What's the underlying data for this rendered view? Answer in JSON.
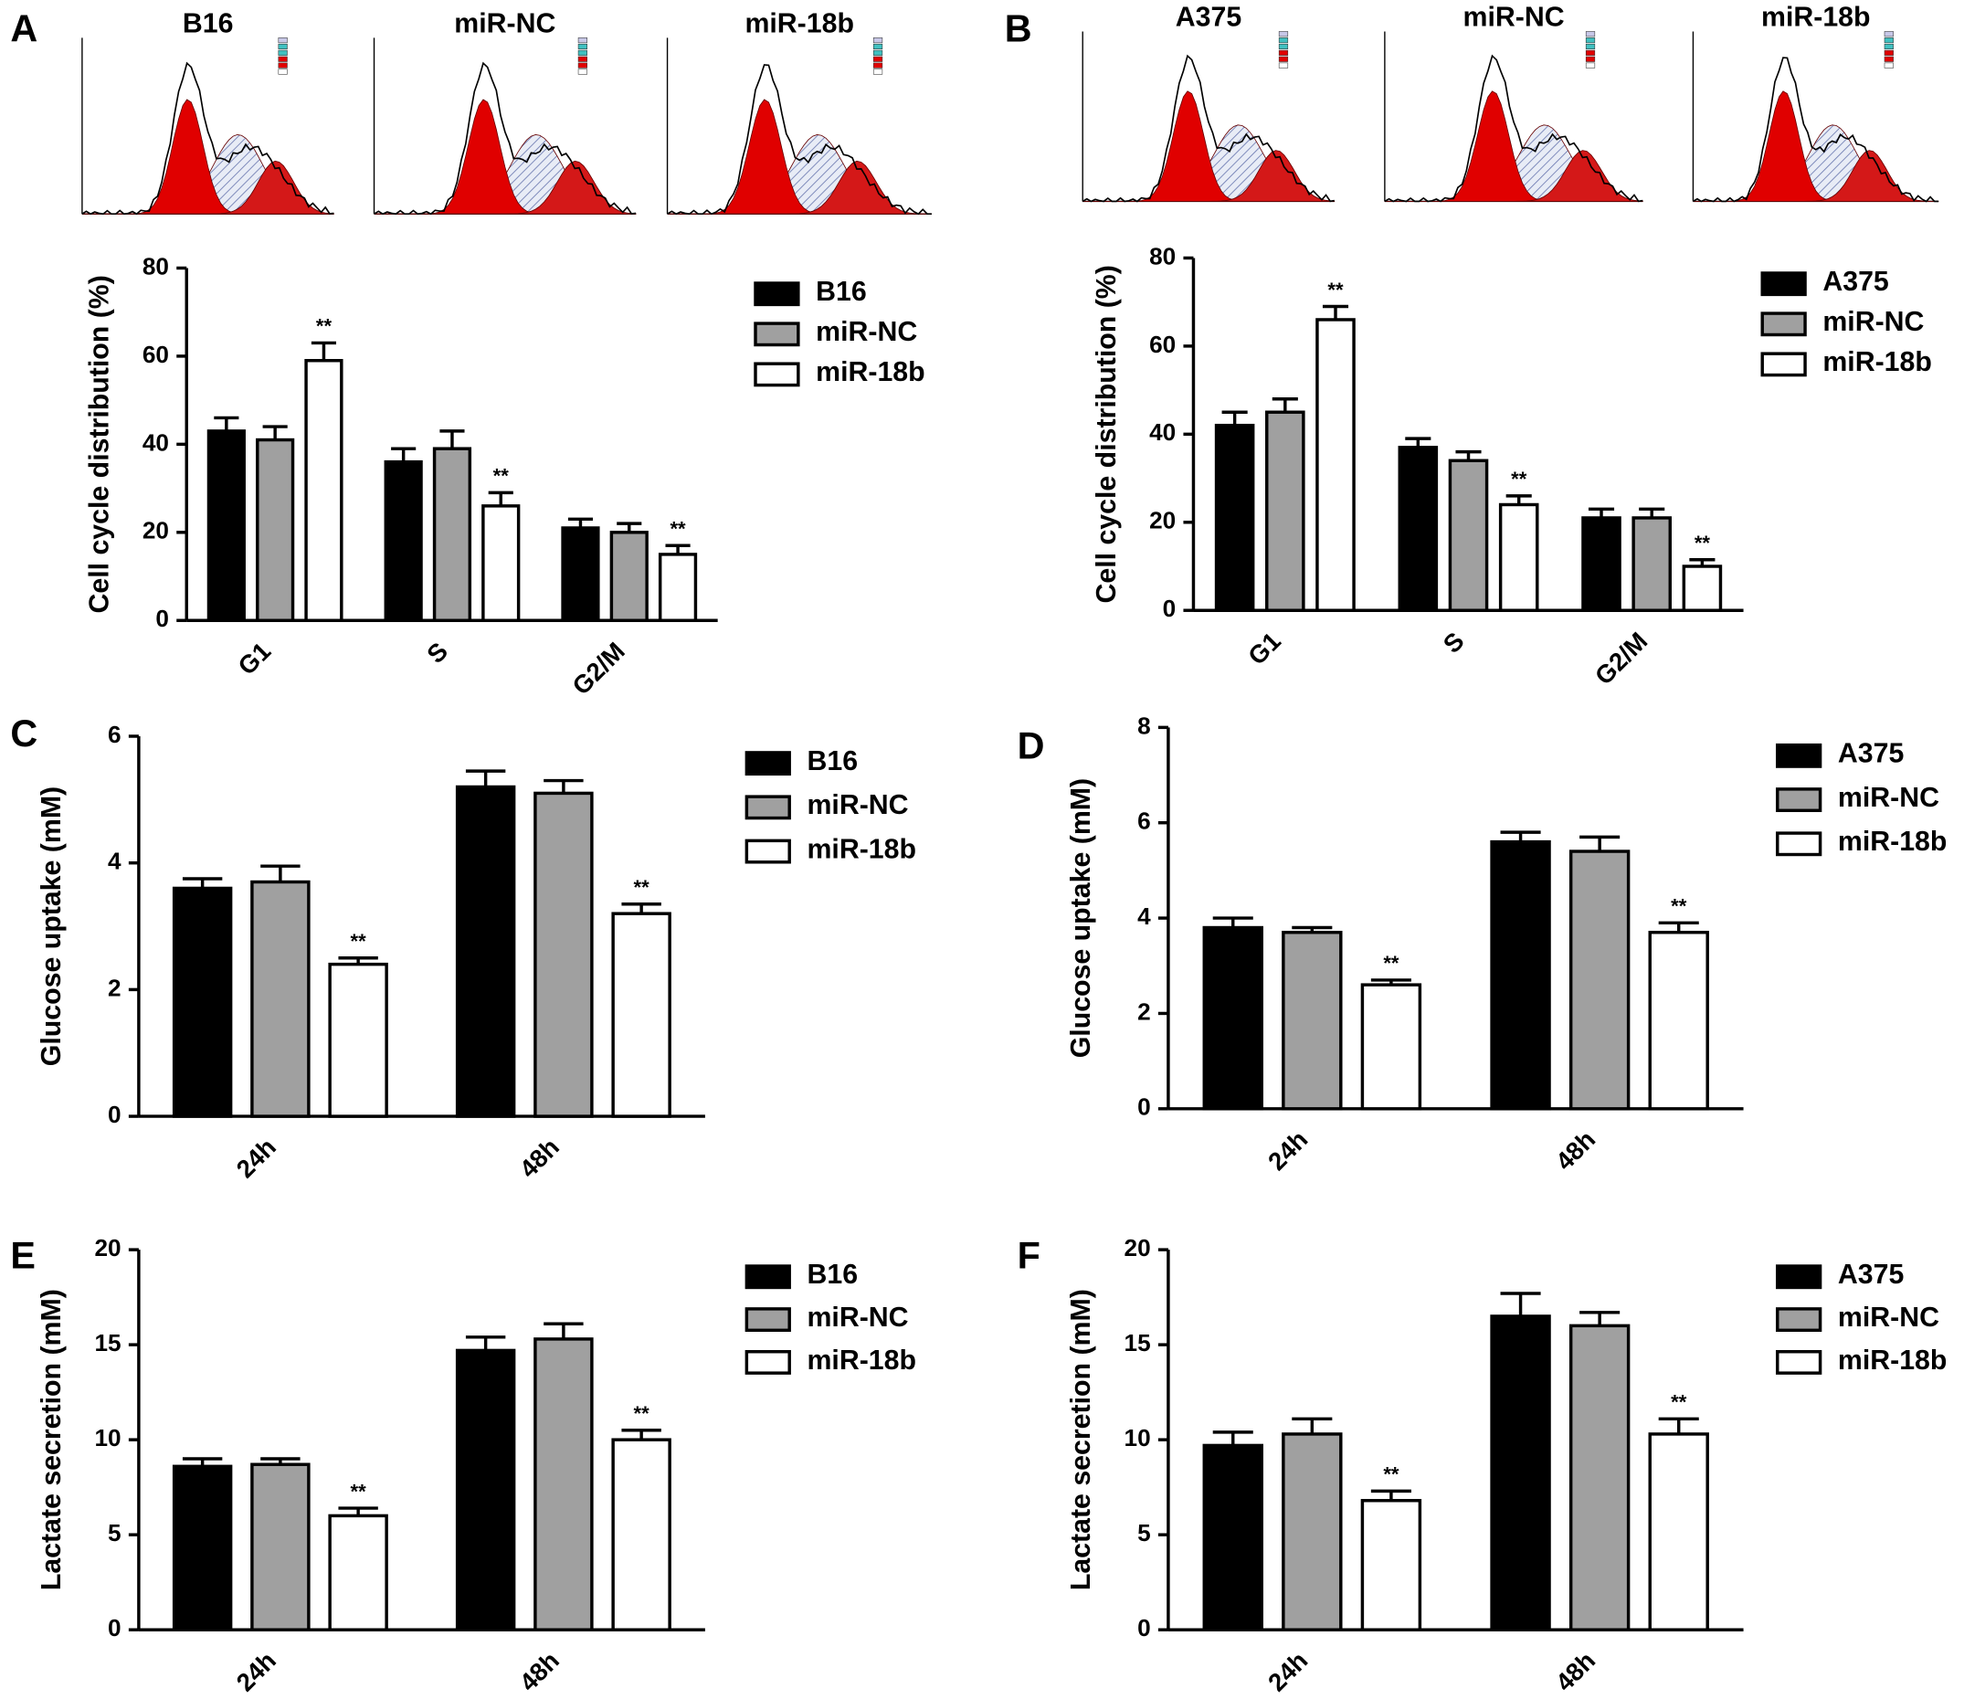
{
  "chart_data": [
    {
      "type": "bar",
      "panel_label": "A",
      "flow_titles": [
        "B16",
        "miR-NC",
        "miR-18b"
      ],
      "ylabel": "Cell cycle distribution (%)",
      "categories": [
        "G1",
        "S",
        "G2/M"
      ],
      "ylim": [
        0,
        80
      ],
      "yticks": [
        0,
        20,
        40,
        60,
        80
      ],
      "series": [
        {
          "name": "B16",
          "color": "#000000",
          "values": [
            43,
            36,
            21
          ],
          "errors": [
            3,
            3,
            2
          ]
        },
        {
          "name": "miR-NC",
          "color": "#a0a0a0",
          "values": [
            41,
            39,
            20
          ],
          "errors": [
            3,
            4,
            2
          ]
        },
        {
          "name": "miR-18b",
          "color": "#ffffff",
          "values": [
            59,
            26,
            15
          ],
          "errors": [
            4,
            3,
            2
          ],
          "annotations": [
            "**",
            "**",
            "**"
          ]
        }
      ]
    },
    {
      "type": "bar",
      "panel_label": "B",
      "flow_titles": [
        "A375",
        "miR-NC",
        "miR-18b"
      ],
      "ylabel": "Cell cycle distribution (%)",
      "categories": [
        "G1",
        "S",
        "G2/M"
      ],
      "ylim": [
        0,
        80
      ],
      "yticks": [
        0,
        20,
        40,
        60,
        80
      ],
      "series": [
        {
          "name": "A375",
          "color": "#000000",
          "values": [
            42,
            37,
            21
          ],
          "errors": [
            3,
            2,
            2
          ]
        },
        {
          "name": "miR-NC",
          "color": "#a0a0a0",
          "values": [
            45,
            34,
            21
          ],
          "errors": [
            3,
            2,
            2
          ]
        },
        {
          "name": "miR-18b",
          "color": "#ffffff",
          "values": [
            66,
            24,
            10
          ],
          "errors": [
            3,
            2,
            1.5
          ],
          "annotations": [
            "**",
            "**",
            "**"
          ]
        }
      ]
    },
    {
      "type": "bar",
      "panel_label": "C",
      "ylabel": "Glucose uptake (mM)",
      "categories": [
        "24h",
        "48h"
      ],
      "ylim": [
        0,
        6
      ],
      "yticks": [
        0,
        2,
        4,
        6
      ],
      "series": [
        {
          "name": "B16",
          "color": "#000000",
          "values": [
            3.6,
            5.2
          ],
          "errors": [
            0.15,
            0.25
          ]
        },
        {
          "name": "miR-NC",
          "color": "#a0a0a0",
          "values": [
            3.7,
            5.1
          ],
          "errors": [
            0.25,
            0.2
          ]
        },
        {
          "name": "miR-18b",
          "color": "#ffffff",
          "values": [
            2.4,
            3.2
          ],
          "errors": [
            0.1,
            0.15
          ],
          "annotations": [
            "**",
            "**"
          ]
        }
      ]
    },
    {
      "type": "bar",
      "panel_label": "D",
      "ylabel": "Glucose uptake (mM)",
      "categories": [
        "24h",
        "48h"
      ],
      "ylim": [
        0,
        8
      ],
      "yticks": [
        0,
        2,
        4,
        6,
        8
      ],
      "series": [
        {
          "name": "A375",
          "color": "#000000",
          "values": [
            3.8,
            5.6
          ],
          "errors": [
            0.2,
            0.2
          ]
        },
        {
          "name": "miR-NC",
          "color": "#a0a0a0",
          "values": [
            3.7,
            5.4
          ],
          "errors": [
            0.1,
            0.3
          ]
        },
        {
          "name": "miR-18b",
          "color": "#ffffff",
          "values": [
            2.6,
            3.7
          ],
          "errors": [
            0.1,
            0.2
          ],
          "annotations": [
            "**",
            "**"
          ]
        }
      ]
    },
    {
      "type": "bar",
      "panel_label": "E",
      "ylabel": "Lactate secretion (mM)",
      "categories": [
        "24h",
        "48h"
      ],
      "ylim": [
        0,
        20
      ],
      "yticks": [
        0,
        5,
        10,
        15,
        20
      ],
      "series": [
        {
          "name": "B16",
          "color": "#000000",
          "values": [
            8.6,
            14.7
          ],
          "errors": [
            0.4,
            0.7
          ]
        },
        {
          "name": "miR-NC",
          "color": "#a0a0a0",
          "values": [
            8.7,
            15.3
          ],
          "errors": [
            0.3,
            0.8
          ]
        },
        {
          "name": "miR-18b",
          "color": "#ffffff",
          "values": [
            6.0,
            10.0
          ],
          "errors": [
            0.4,
            0.5
          ],
          "annotations": [
            "**",
            "**"
          ]
        }
      ]
    },
    {
      "type": "bar",
      "panel_label": "F",
      "ylabel": "Lactate secretion (mM)",
      "categories": [
        "24h",
        "48h"
      ],
      "ylim": [
        0,
        20
      ],
      "yticks": [
        0,
        5,
        10,
        15,
        20
      ],
      "series": [
        {
          "name": "A375",
          "color": "#000000",
          "values": [
            9.7,
            16.5
          ],
          "errors": [
            0.7,
            1.2
          ]
        },
        {
          "name": "miR-NC",
          "color": "#a0a0a0",
          "values": [
            10.3,
            16.0
          ],
          "errors": [
            0.8,
            0.7
          ]
        },
        {
          "name": "miR-18b",
          "color": "#ffffff",
          "values": [
            6.8,
            10.3
          ],
          "errors": [
            0.5,
            0.8
          ],
          "annotations": [
            "**",
            "**"
          ]
        }
      ]
    }
  ]
}
